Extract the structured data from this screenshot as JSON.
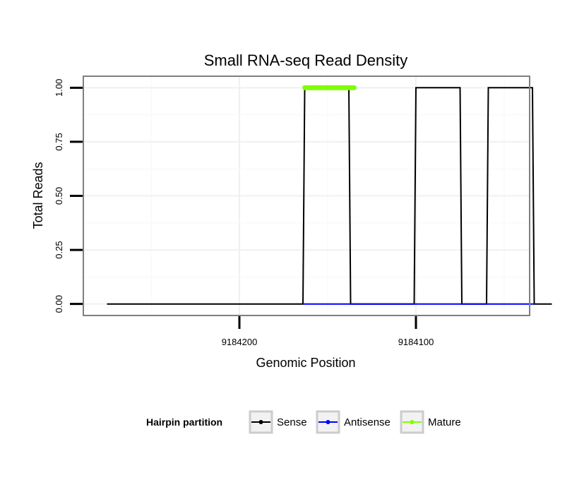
{
  "chart_data": {
    "type": "line",
    "title": "Small RNA-seq Read Density",
    "xlabel": "Genomic Position",
    "ylabel": "Total Reads",
    "x_reversed": true,
    "xlim": [
      9184288,
      9184036
    ],
    "ylim": [
      -0.05,
      1.05
    ],
    "x_ticks": [
      9184200,
      9184100
    ],
    "x_tick_labels": [
      "9184200",
      "9184100"
    ],
    "y_ticks": [
      0,
      0.25,
      0.5,
      0.75,
      1
    ],
    "y_tick_labels": [
      "0.00",
      "0.25",
      "0.50",
      "0.75",
      "1.00"
    ],
    "grid": true,
    "legend": {
      "title": "Hairpin partition",
      "placement": "bottom",
      "entries": [
        "Sense",
        "Antisense",
        "Mature"
      ]
    },
    "series": [
      {
        "name": "Sense",
        "color": "#000000",
        "x": [
          9184275,
          9184164,
          9184163,
          9184138,
          9184137,
          9184101,
          9184100,
          9184075,
          9184074,
          9184060,
          9184059,
          9184034,
          9184033,
          9184023
        ],
        "y": [
          0,
          0,
          1,
          1,
          0,
          0,
          1,
          1,
          0,
          0,
          1,
          1,
          0,
          0
        ]
      },
      {
        "name": "Antisense",
        "color": "#0000ff",
        "x": [
          9184164,
          9184137,
          9184101,
          9184074,
          9184060,
          9184033
        ],
        "y": [
          0,
          0,
          0,
          0,
          0,
          0
        ]
      },
      {
        "name": "Mature",
        "color": "#80ff00",
        "x": [
          9184163,
          9184135
        ],
        "y": [
          1,
          1
        ]
      }
    ]
  }
}
